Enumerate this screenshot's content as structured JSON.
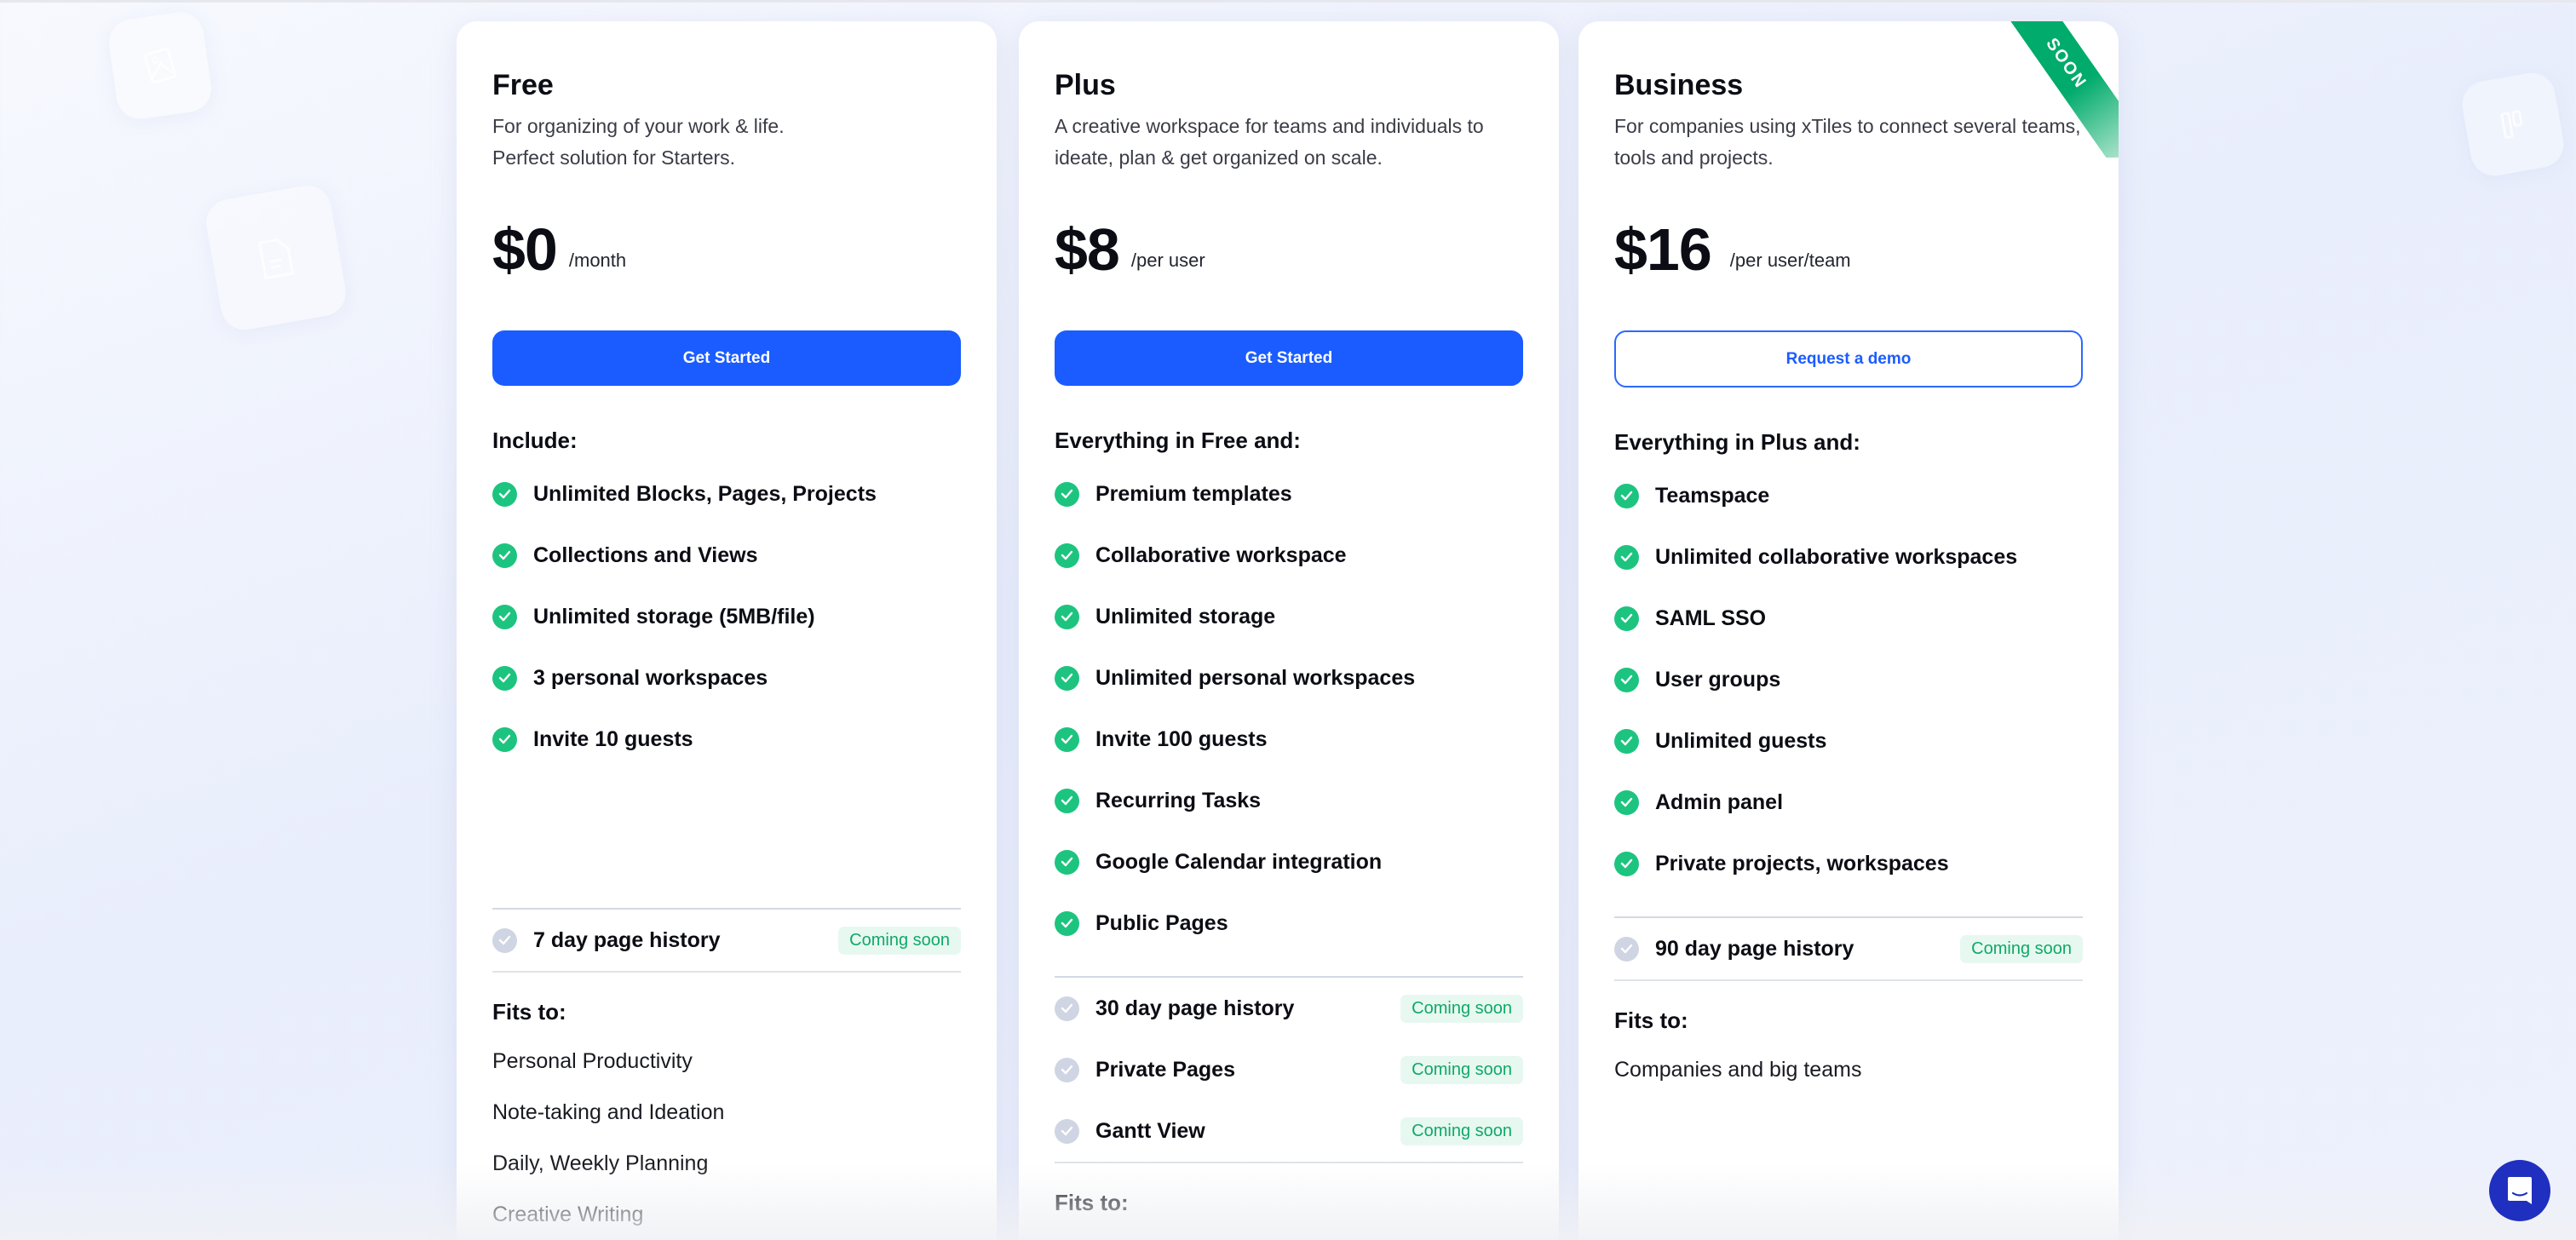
{
  "colors": {
    "primary": "#1a5cff",
    "check": "#1dc47f",
    "check_disabled": "#cfd5e2",
    "badge_bg": "#e7f8f0",
    "badge_text": "#0fa968",
    "ribbon": "#00ab6b",
    "chat": "#1f2fbf"
  },
  "plans": [
    {
      "name": "Free",
      "description": "For organizing of your work & life.\nPerfect solution for Starters.",
      "price": "$0",
      "period": "/month",
      "button": "Get Started",
      "features_heading": "Include:",
      "features": [
        "Unlimited Blocks, Pages, Projects",
        "Collections and Views",
        "Unlimited storage (5MB/file)",
        "3 personal workspaces",
        "Invite 10 guests"
      ],
      "coming": [
        {
          "label": "7 day page history",
          "badge": "Coming soon"
        }
      ],
      "fits_heading": "Fits to:",
      "fits": [
        "Personal Productivity",
        "Note-taking and Ideation",
        "Daily, Weekly Planning",
        "Creative Writing"
      ]
    },
    {
      "name": "Plus",
      "description": "A creative workspace for teams and individuals to\nideate, plan & get organized on scale.",
      "price": "$8",
      "period": "/per user",
      "button": "Get Started",
      "features_heading": "Everything in Free and:",
      "features": [
        "Premium templates",
        "Collaborative workspace",
        "Unlimited storage",
        "Unlimited personal workspaces",
        "Invite 100 guests",
        "Recurring Tasks",
        "Google Calendar integration",
        "Public Pages"
      ],
      "coming": [
        {
          "label": "30 day page history",
          "badge": "Coming soon"
        },
        {
          "label": "Private Pages",
          "badge": "Coming soon"
        },
        {
          "label": "Gantt View",
          "badge": "Coming soon"
        }
      ],
      "fits_heading": "Fits to:"
    },
    {
      "name": "Business",
      "ribbon": "SOON",
      "description": "For companies using xTiles to connect several teams,\ntools and projects.",
      "price": "$16",
      "period": "/per user/team",
      "button": "Request a demo",
      "features_heading": "Everything in Plus and:",
      "features": [
        "Teamspace",
        "Unlimited collaborative workspaces",
        "SAML SSO",
        "User groups",
        "Unlimited guests",
        "Admin panel",
        "Private projects, workspaces"
      ],
      "coming": [
        {
          "label": "90 day page history",
          "badge": "Coming soon"
        }
      ],
      "fits_heading": "Fits to:",
      "fits": [
        "Companies and big teams"
      ]
    }
  ],
  "chat_icon": "chat-bubble-icon"
}
